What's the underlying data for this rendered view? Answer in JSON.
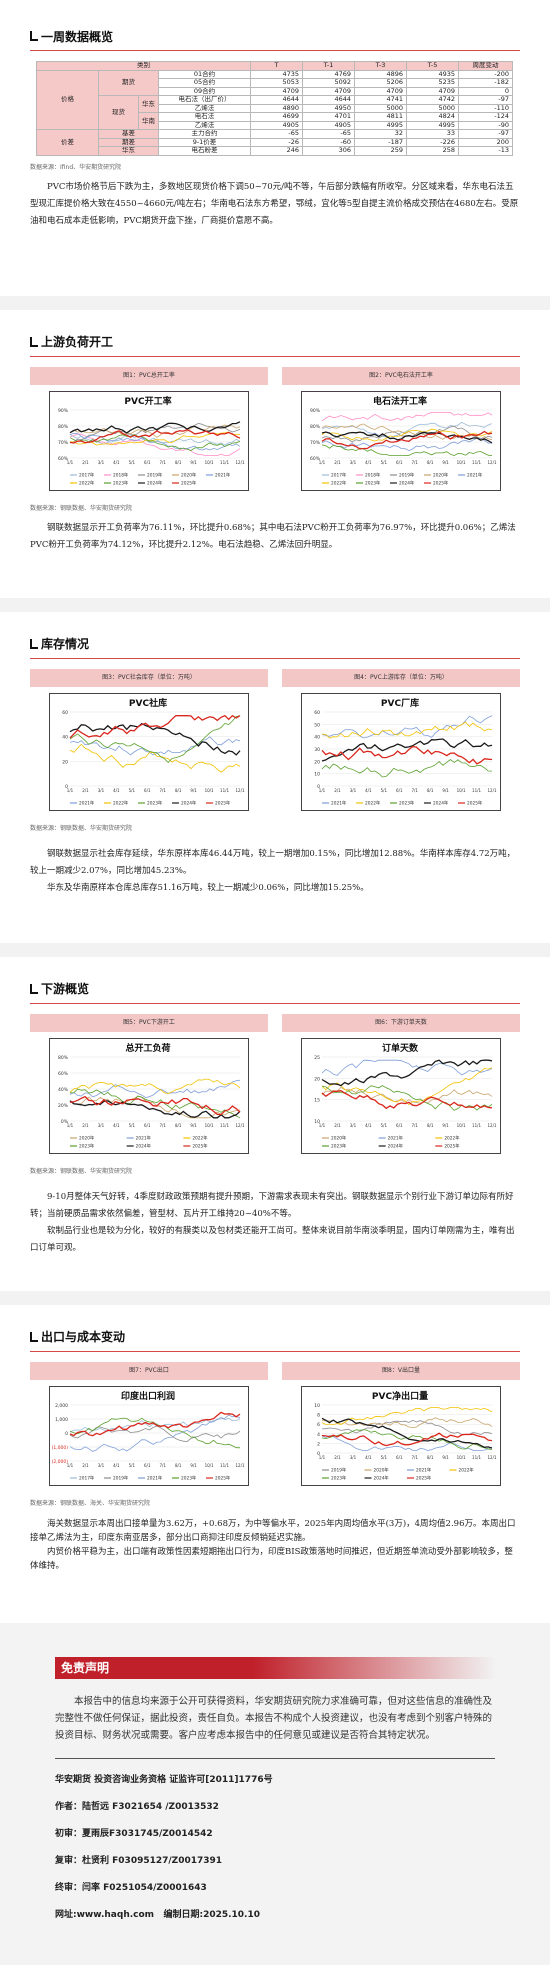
{
  "s1": {
    "title": "一周数据概览",
    "table": {
      "headers": [
        "类别",
        "",
        "",
        "",
        "T",
        "T-1",
        "T-3",
        "T-5",
        "周度变动"
      ],
      "groups": {
        "price": "价格",
        "spot": "现货",
        "east": "华东",
        "south": "华南",
        "futures": "期货",
        "spread": "价差"
      },
      "rows": [
        {
          "item": "01合约",
          "v": [
            "4735",
            "4769",
            "4896",
            "4935",
            "-200"
          ]
        },
        {
          "item": "05合约",
          "v": [
            "5053",
            "5092",
            "5206",
            "5235",
            "-182"
          ]
        },
        {
          "item": "09合约",
          "v": [
            "4709",
            "4709",
            "4709",
            "4709",
            "0"
          ]
        },
        {
          "item": "电石法（出厂价）",
          "v": [
            "4644",
            "4644",
            "4741",
            "4742",
            "-97"
          ]
        },
        {
          "item": "乙烯法",
          "v": [
            "4890",
            "4950",
            "5000",
            "5000",
            "-110"
          ]
        },
        {
          "item": "电石法",
          "v": [
            "4699",
            "4701",
            "4811",
            "4824",
            "-124"
          ]
        },
        {
          "item": "乙烯法",
          "v": [
            "4905",
            "4905",
            "4995",
            "4995",
            "-90"
          ]
        },
        {
          "item": "主力合约",
          "v": [
            "-65",
            "-65",
            "32",
            "33",
            "-97"
          ]
        },
        {
          "item": "9-1价差",
          "v": [
            "-26",
            "-60",
            "-187",
            "-226",
            "200"
          ]
        },
        {
          "item": "电石粉差",
          "v": [
            "246",
            "306",
            "259",
            "258",
            "-13"
          ]
        }
      ],
      "row_groups": [
        "基差",
        "期差",
        "华东"
      ]
    },
    "source": "数据来源：Ifind、华安期货研究院",
    "paragraphs": [
      "PVC市场价格节后下跌为主，多数地区现货价格下调50~70元/吨不等，午后部分跌幅有所收窄。分区域来看，华东电石法五型现汇库提价格大致在4550~4660元/吨左右；华南电石法东方希望，鄂绒，宜化等5型自提主流价格成交预估在4680左右。受原油和电石成本走低影响，PVC期货开盘下挫，厂商挺价意愿不高。"
    ]
  },
  "s2": {
    "title": "上游负荷开工",
    "fig1": {
      "caption": "图1：PVC总开工率",
      "title": "PVC开工率"
    },
    "fig2": {
      "caption": "图2：PVC电石法开工率",
      "title": "电石法开工率"
    },
    "source": "数据来源：钢联数据、华安期货研究院",
    "paragraphs": [
      "钢联数据显示开工负荷率为76.11%，环比提升0.68%；其中电石法PVC粉开工负荷率为76.97%，环比提升0.06%；乙烯法PVC粉开工负荷率为74.12%，环比提升2.12%。电石法趋稳、乙烯法回升明显。"
    ]
  },
  "s3": {
    "title": "库存情况",
    "fig1": {
      "caption": "图3：PVC社会库存（单位：万吨）",
      "title": "PVC社库"
    },
    "fig2": {
      "caption": "图4：PVC上游库存（单位：万吨）",
      "title": "PVC厂库"
    },
    "source": "数据来源：钢联数据、华安期货研究院",
    "paragraphs": [
      "钢联数据显示社会库存延续，华东原样本库46.44万吨，较上一期增加0.15%，同比增加12.88%。华南样本库存4.72万吨，较上一期减少2.07%，同比增加45.23%。",
      "华东及华南原样本仓库总库存51.16万吨，较上一期减少0.06%，同比增加15.25%。"
    ]
  },
  "s4": {
    "title": "下游概览",
    "fig1": {
      "caption": "图5：PVC下游开工",
      "title": "总开工负荷"
    },
    "fig2": {
      "caption": "图6：下游订单天数",
      "title": "订单天数"
    },
    "source": "数据来源：钢联数据、华安期货研究院",
    "paragraphs": [
      "9-10月整体天气好转，4季度财政政策预期有提升预期，下游需求表现未有突出。钢联数据显示个别行业下游订单边际有所好转；当前硬质品需求依然偏差，管型材、瓦片开工维持20~40%不等。",
      "软制品行业也是较为分化，较好的有膜类以及包材类还能开工尚可。整体来说目前华南淡季明显，国内订单刚需为主，唯有出口订单可观。"
    ]
  },
  "s5": {
    "title": "出口与成本变动",
    "fig1": {
      "caption": "图7：PVC出口",
      "title": "印度出口利润"
    },
    "fig2": {
      "caption": "图8：V出口量",
      "title": "PVC净出口量"
    },
    "source": "数据来源：钢联数据、海关、华安期货研究院",
    "paragraphs": [
      "海关数据显示本周出口接单量为3.62万，+0.68万，为中等偏水平，2025年内周均值水平(3万)，4周均值2.96万。本周出口接单乙烯法为主，印度东南亚居多，部分出口商抑注印度反倾销延迟实施。",
      "内贸价格平稳为主，出口端有政策性因素短期拖出口行为，印度BIS政策落地时间推迟，但近期签单流动受外部影响较多，整体维持。"
    ]
  },
  "legend": {
    "y2017": "2017年",
    "y2018": "2018年",
    "y2019": "2019年",
    "y2020": "2020年",
    "y2021": "2021年",
    "y2022": "2022年",
    "y2023": "2023年",
    "y2024": "2024年",
    "y2025": "2025年"
  },
  "months": [
    "1/1",
    "2/1",
    "3/1",
    "4/1",
    "5/1",
    "6/1",
    "7/1",
    "8/1",
    "9/1",
    "10/1",
    "11/1",
    "12/1"
  ],
  "disclaimer": {
    "title": "免责声明",
    "text": "本报告中的信息均来源于公开可获得资料，华安期货研究院力求准确可靠，但对这些信息的准确性及完整性不做任何保证，据此投资，责任自负。本报告不构成个人投资建议，也没有考虑到个别客户特殊的投资目标、财务状况或需要。客户应考虑本报告中的任何意见或建议是否符合其特定状况。",
    "license": "华安期货 投资咨询业务资格 证监许可[2011]1776号",
    "author_label": "作者：",
    "author": "陆哲远 F3021654 /Z0013532",
    "review1_label": "初审：",
    "review1": "夏雨辰F3031745/Z0014542",
    "review2_label": "复审：",
    "review2": "杜贤利 F03095127/Z0017391",
    "final_label": "终审：",
    "final": "闫率 F0251054/Z0001643",
    "site_label": "网址:",
    "site": "www.haqh.com",
    "date_label": "编制日期:",
    "date": "2025.10.10"
  }
}
